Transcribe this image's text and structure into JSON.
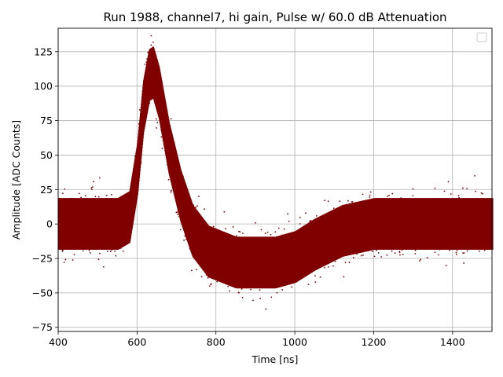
{
  "chart_data": {
    "type": "scatter",
    "title": "Run 1988, channel7, hi gain, Pulse w/ 60.0 dB Attenuation",
    "xlabel": "Time [ns]",
    "ylabel": "Amplitude [ADC Counts]",
    "xlim": [
      400,
      1500
    ],
    "ylim": [
      -78,
      142
    ],
    "xticks": [
      400,
      600,
      800,
      1000,
      1200,
      1400
    ],
    "yticks": [
      -75,
      -50,
      -25,
      0,
      25,
      50,
      75,
      100,
      125
    ],
    "grid": true,
    "legend": {
      "position": "top-right",
      "entries": []
    },
    "point_color": "#800000",
    "series": [
      {
        "values_envelope": [
          {
            "x": 400,
            "center": 0,
            "spread": 22
          },
          {
            "x": 550,
            "center": 0,
            "spread": 22
          },
          {
            "x": 580,
            "center": 5,
            "spread": 22
          },
          {
            "x": 600,
            "center": 40,
            "spread": 22
          },
          {
            "x": 615,
            "center": 85,
            "spread": 22
          },
          {
            "x": 630,
            "center": 108,
            "spread": 22
          },
          {
            "x": 640,
            "center": 110,
            "spread": 22
          },
          {
            "x": 655,
            "center": 95,
            "spread": 22
          },
          {
            "x": 680,
            "center": 55,
            "spread": 22
          },
          {
            "x": 710,
            "center": 20,
            "spread": 22
          },
          {
            "x": 740,
            "center": -5,
            "spread": 22
          },
          {
            "x": 780,
            "center": -20,
            "spread": 22
          },
          {
            "x": 850,
            "center": -28,
            "spread": 22
          },
          {
            "x": 950,
            "center": -28,
            "spread": 22
          },
          {
            "x": 1000,
            "center": -24,
            "spread": 22
          },
          {
            "x": 1050,
            "center": -15,
            "spread": 22
          },
          {
            "x": 1120,
            "center": -5,
            "spread": 22
          },
          {
            "x": 1200,
            "center": 0,
            "spread": 22
          },
          {
            "x": 1500,
            "center": 0,
            "spread": 22
          }
        ]
      }
    ]
  }
}
